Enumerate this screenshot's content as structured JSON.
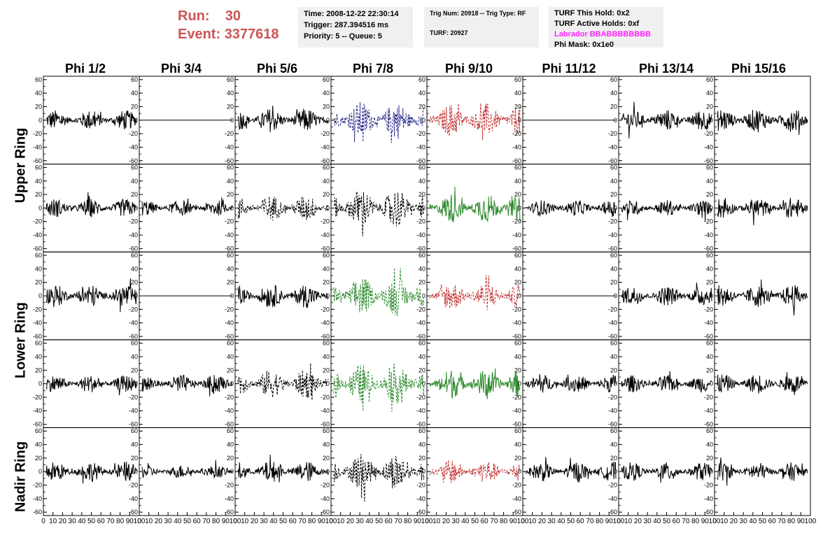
{
  "header": {
    "run_label": "Run:",
    "run_value": "30",
    "event_label": "Event:",
    "event_value": "3377618",
    "time": "Time: 2008-12-22 22:30:14",
    "trigger": "Trigger: 287.394516 ms",
    "priority": "Priority: 5 -- Queue: 5",
    "trig_num": "Trig Num: 20918 -- Trig Type: RF",
    "turf_num": "TURF: 20927",
    "turf_this_hold": "TURF This Hold: 0x2",
    "turf_active_holds": "TURF Active Holds: 0xf",
    "labrador": "Labrador BBABBBBBBBB",
    "phi_mask": "Phi Mask: 0x1e0"
  },
  "columns": [
    "Phi 1/2",
    "Phi 3/4",
    "Phi 5/6",
    "Phi 7/8",
    "Phi 9/10",
    "Phi 11/12",
    "Phi 13/14",
    "Phi 15/16"
  ],
  "ring_labels": [
    "Upper Ring",
    "Lower Ring",
    "Nadir Ring"
  ],
  "colors": {
    "header_red": "#cc5555",
    "labrador": "#ff22ff",
    "trig_blue": "#2a2a8c",
    "trig_red": "#c03030",
    "trig_green": "#2e8b2e",
    "normal": "#000000"
  },
  "chart_data": {
    "type": "line",
    "title": "",
    "xlabel": "",
    "ylabel": "",
    "xlim": [
      0,
      100
    ],
    "ylim": [
      -65,
      65
    ],
    "yticks": [
      -60,
      -40,
      -20,
      0,
      20,
      40,
      60
    ],
    "xticks": [
      0,
      10,
      20,
      30,
      40,
      50,
      60,
      70,
      80,
      90,
      100
    ],
    "grid": false,
    "rows": 5,
    "cols": 8,
    "panels_style_note_omitted": true,
    "panels": [
      {
        "row": 0,
        "col": 0,
        "style": "solid",
        "color": "#000000",
        "amp": 15,
        "flat": false
      },
      {
        "row": 0,
        "col": 1,
        "style": "solid",
        "color": "#000000",
        "amp": 0,
        "flat": true
      },
      {
        "row": 0,
        "col": 2,
        "style": "solid",
        "color": "#000000",
        "amp": 18,
        "flat": false
      },
      {
        "row": 0,
        "col": 3,
        "style": "dashed",
        "color": "#2a2a8c",
        "amp": 28,
        "flat": false
      },
      {
        "row": 0,
        "col": 4,
        "style": "dashed",
        "color": "#c03030",
        "amp": 25,
        "flat": false
      },
      {
        "row": 0,
        "col": 5,
        "style": "solid",
        "color": "#000000",
        "amp": 0,
        "flat": true
      },
      {
        "row": 0,
        "col": 6,
        "style": "solid",
        "color": "#000000",
        "amp": 16,
        "flat": false
      },
      {
        "row": 0,
        "col": 7,
        "style": "solid",
        "color": "#000000",
        "amp": 18,
        "flat": false
      },
      {
        "row": 1,
        "col": 0,
        "style": "solid",
        "color": "#000000",
        "amp": 14,
        "flat": false
      },
      {
        "row": 1,
        "col": 1,
        "style": "solid",
        "color": "#000000",
        "amp": 12,
        "flat": false
      },
      {
        "row": 1,
        "col": 2,
        "style": "dashed",
        "color": "#000000",
        "amp": 20,
        "flat": false
      },
      {
        "row": 1,
        "col": 3,
        "style": "dashed",
        "color": "#000000",
        "amp": 30,
        "flat": false
      },
      {
        "row": 1,
        "col": 4,
        "style": "solid",
        "color": "#2e8b2e",
        "amp": 22,
        "flat": false
      },
      {
        "row": 1,
        "col": 5,
        "style": "solid",
        "color": "#000000",
        "amp": 12,
        "flat": false
      },
      {
        "row": 1,
        "col": 6,
        "style": "solid",
        "color": "#000000",
        "amp": 12,
        "flat": false
      },
      {
        "row": 1,
        "col": 7,
        "style": "solid",
        "color": "#000000",
        "amp": 16,
        "flat": false
      },
      {
        "row": 2,
        "col": 0,
        "style": "solid",
        "color": "#000000",
        "amp": 17,
        "flat": false
      },
      {
        "row": 2,
        "col": 1,
        "style": "solid",
        "color": "#000000",
        "amp": 0,
        "flat": true
      },
      {
        "row": 2,
        "col": 2,
        "style": "solid",
        "color": "#000000",
        "amp": 18,
        "flat": false
      },
      {
        "row": 2,
        "col": 3,
        "style": "dashed",
        "color": "#2e8b2e",
        "amp": 30,
        "flat": false
      },
      {
        "row": 2,
        "col": 4,
        "style": "dashed",
        "color": "#c03030",
        "amp": 22,
        "flat": false
      },
      {
        "row": 2,
        "col": 5,
        "style": "solid",
        "color": "#000000",
        "amp": 0,
        "flat": true
      },
      {
        "row": 2,
        "col": 6,
        "style": "solid",
        "color": "#000000",
        "amp": 15,
        "flat": false
      },
      {
        "row": 2,
        "col": 7,
        "style": "solid",
        "color": "#000000",
        "amp": 17,
        "flat": false
      },
      {
        "row": 3,
        "col": 0,
        "style": "solid",
        "color": "#000000",
        "amp": 13,
        "flat": false
      },
      {
        "row": 3,
        "col": 1,
        "style": "solid",
        "color": "#000000",
        "amp": 14,
        "flat": false
      },
      {
        "row": 3,
        "col": 2,
        "style": "dashed",
        "color": "#000000",
        "amp": 22,
        "flat": false
      },
      {
        "row": 3,
        "col": 3,
        "style": "dashed",
        "color": "#2e8b2e",
        "amp": 30,
        "flat": false
      },
      {
        "row": 3,
        "col": 4,
        "style": "solid",
        "color": "#2e8b2e",
        "amp": 22,
        "flat": false
      },
      {
        "row": 3,
        "col": 5,
        "style": "solid",
        "color": "#000000",
        "amp": 14,
        "flat": false
      },
      {
        "row": 3,
        "col": 6,
        "style": "solid",
        "color": "#000000",
        "amp": 13,
        "flat": false
      },
      {
        "row": 3,
        "col": 7,
        "style": "solid",
        "color": "#000000",
        "amp": 15,
        "flat": false
      },
      {
        "row": 4,
        "col": 0,
        "style": "solid",
        "color": "#000000",
        "amp": 15,
        "flat": false
      },
      {
        "row": 4,
        "col": 1,
        "style": "solid",
        "color": "#000000",
        "amp": 10,
        "flat": false
      },
      {
        "row": 4,
        "col": 2,
        "style": "solid",
        "color": "#000000",
        "amp": 16,
        "flat": false
      },
      {
        "row": 4,
        "col": 3,
        "style": "dashed",
        "color": "#000000",
        "amp": 28,
        "flat": false
      },
      {
        "row": 4,
        "col": 4,
        "style": "dashed",
        "color": "#c03030",
        "amp": 18,
        "flat": false
      },
      {
        "row": 4,
        "col": 5,
        "style": "solid",
        "color": "#000000",
        "amp": 15,
        "flat": false
      },
      {
        "row": 4,
        "col": 6,
        "style": "solid",
        "color": "#000000",
        "amp": 14,
        "flat": false
      },
      {
        "row": 4,
        "col": 7,
        "style": "solid",
        "color": "#000000",
        "amp": 14,
        "flat": false
      }
    ]
  }
}
